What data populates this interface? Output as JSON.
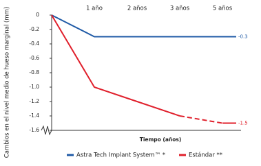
{
  "chart_data": {
    "type": "line",
    "y_label": "Cambios en el nivel medio de hueso marginal (mm)",
    "x_label": "Tiempo (años)",
    "categories": [
      null,
      "1 año",
      "2 años",
      "3 años",
      "5 años"
    ],
    "series": [
      {
        "name": "Astra Tech Implant System™ *",
        "color": "#1f5aa6",
        "values": [
          0,
          -0.3,
          -0.3,
          -0.3,
          -0.3
        ]
      },
      {
        "name": "Estándar **",
        "color": "#e0202c",
        "values": [
          0,
          -1.0,
          -1.2,
          -1.4,
          -1.5
        ],
        "dashed_from": 3
      }
    ],
    "label_last": true,
    "ylim": [
      -1.6,
      0
    ],
    "yticks": [
      0,
      -0.2,
      -0.4,
      -0.6,
      -0.8,
      {
        "value": -1.0,
        "label": "-1.0"
      },
      -1.2,
      -1.4,
      -1.6
    ],
    "grid": false
  }
}
